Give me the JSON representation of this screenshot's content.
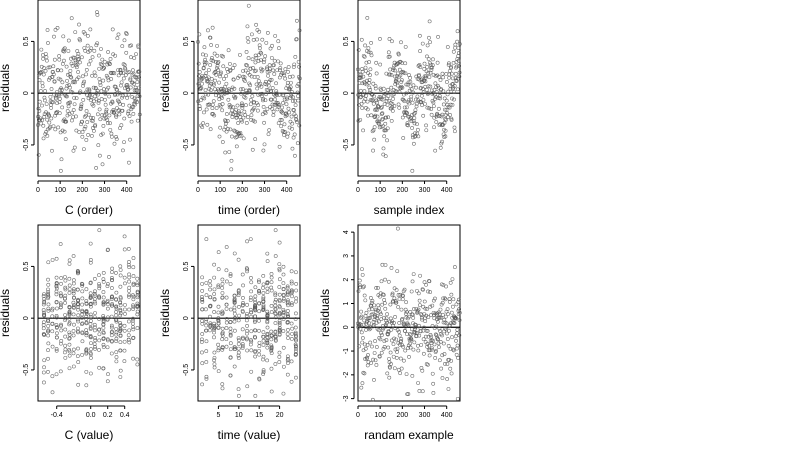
{
  "chart_data": [
    {
      "type": "scatter",
      "xlabel": "C (order)",
      "ylabel": "residuals",
      "xlim": [
        0,
        460
      ],
      "ylim": [
        -0.8,
        0.9
      ],
      "x_ticks": [
        0,
        100,
        200,
        300,
        400
      ],
      "y_ticks": [
        -0.5,
        0.0,
        0.5
      ],
      "reference_line_y": 0,
      "n_points": 460,
      "pattern": "uniform_index",
      "seed": 11
    },
    {
      "type": "scatter",
      "xlabel": "time (order)",
      "ylabel": "residuals",
      "xlim": [
        0,
        460
      ],
      "ylim": [
        -0.8,
        0.9
      ],
      "x_ticks": [
        0,
        100,
        200,
        300,
        400
      ],
      "y_ticks": [
        -0.5,
        0.0,
        0.5
      ],
      "reference_line_y": 0,
      "n_points": 460,
      "pattern": "wavy_index",
      "seed": 23
    },
    {
      "type": "scatter",
      "xlabel": "sample index",
      "ylabel": "residuals",
      "xlim": [
        0,
        460
      ],
      "ylim": [
        -0.8,
        0.9
      ],
      "x_ticks": [
        0,
        100,
        200,
        300,
        400
      ],
      "y_ticks": [
        -0.5,
        0.0,
        0.5
      ],
      "reference_line_y": 0,
      "n_points": 460,
      "pattern": "clustered_index",
      "seed": 37
    },
    {
      "type": "scatter",
      "xlabel": "C (value)",
      "ylabel": "residuals",
      "xlim": [
        -0.62,
        0.58
      ],
      "ylim": [
        -0.8,
        0.9
      ],
      "x_ticks": [
        -0.4,
        0.0,
        0.2,
        0.4
      ],
      "x_tick_labels": [
        "-0.4",
        "0.0",
        "0.2",
        "0.4"
      ],
      "y_ticks": [
        -0.5,
        0.0,
        0.5
      ],
      "reference_line_y": 0,
      "n_points": 460,
      "pattern": "discrete_columns",
      "columns": [
        -0.55,
        -0.5,
        -0.45,
        -0.4,
        -0.35,
        -0.3,
        -0.25,
        -0.2,
        -0.15,
        -0.1,
        -0.05,
        0.0,
        0.05,
        0.1,
        0.15,
        0.2,
        0.25,
        0.3,
        0.35,
        0.4,
        0.45,
        0.5,
        0.55
      ],
      "seed": 51
    },
    {
      "type": "scatter",
      "xlabel": "time (value)",
      "ylabel": "residuals",
      "xlim": [
        0,
        25
      ],
      "ylim": [
        -0.8,
        0.9
      ],
      "x_ticks": [
        5,
        10,
        15,
        20
      ],
      "y_ticks": [
        -0.5,
        0.0,
        0.5
      ],
      "reference_line_y": 0,
      "n_points": 460,
      "pattern": "discrete_columns",
      "columns": [
        1,
        2,
        3,
        4,
        5,
        6,
        7,
        8,
        9,
        10,
        11,
        12,
        13,
        14,
        15,
        16,
        17,
        18,
        19,
        20,
        21,
        22,
        23,
        24
      ],
      "seed": 67
    },
    {
      "type": "scatter",
      "xlabel": "randam example",
      "ylabel": "residuals",
      "xlim": [
        0,
        460
      ],
      "ylim": [
        -3.1,
        4.3
      ],
      "x_ticks": [
        0,
        100,
        200,
        300,
        400
      ],
      "y_ticks": [
        -3,
        -2,
        -1,
        0,
        1,
        2,
        3,
        4
      ],
      "reference_line_y": 0,
      "n_points": 460,
      "pattern": "normal_index",
      "seed": 89
    }
  ]
}
